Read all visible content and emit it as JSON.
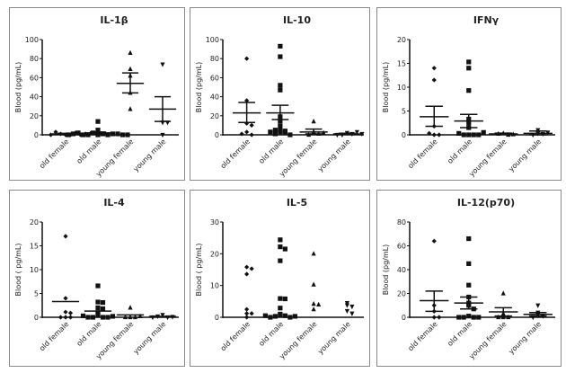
{
  "chart_data": [
    {
      "type": "scatter",
      "title": "IL-1β",
      "ylabel": "Blood (pg/mL)",
      "ylim": [
        0,
        100
      ],
      "yticks": [
        0,
        20,
        40,
        60,
        80,
        100
      ],
      "categories": [
        "old female",
        "old male",
        "young female",
        "young male"
      ],
      "markers": [
        "diamond",
        "square",
        "triangle-up",
        "triangle-down"
      ],
      "groups": [
        {
          "points": [
            0,
            0,
            1,
            2,
            3,
            0,
            0,
            1
          ],
          "mean": 1,
          "sem": [
            0.5,
            1.5
          ]
        },
        {
          "points": [
            0,
            1,
            2,
            5,
            14,
            0,
            0,
            1,
            0,
            1,
            2,
            0,
            1,
            0,
            0
          ],
          "mean": 2,
          "sem": [
            1,
            3
          ]
        },
        {
          "points": [
            86,
            69,
            62,
            44,
            27
          ],
          "mean": 54,
          "sem": [
            44,
            65
          ]
        },
        {
          "points": [
            74,
            13,
            13,
            0
          ],
          "mean": 27,
          "sem": [
            14,
            40
          ]
        }
      ]
    },
    {
      "type": "scatter",
      "title": "IL-10",
      "ylabel": "Blood (pg/mL)",
      "ylim": [
        0,
        100
      ],
      "yticks": [
        0,
        20,
        40,
        60,
        80,
        100
      ],
      "categories": [
        "old female",
        "old male",
        "young female",
        "young male"
      ],
      "markers": [
        "diamond",
        "square",
        "triangle-up",
        "triangle-down"
      ],
      "groups": [
        {
          "points": [
            80,
            36,
            12,
            10,
            3,
            0,
            1
          ],
          "mean": 23,
          "sem": [
            13,
            34
          ]
        },
        {
          "points": [
            93,
            82,
            52,
            47,
            19,
            14,
            9,
            5,
            4,
            3,
            2,
            1,
            0,
            3,
            5
          ],
          "mean": 23,
          "sem": [
            16,
            31
          ]
        },
        {
          "points": [
            14,
            3,
            1,
            0,
            2
          ],
          "mean": 3,
          "sem": [
            1,
            6
          ]
        },
        {
          "points": [
            2,
            1,
            0,
            3,
            0,
            1
          ],
          "mean": 1,
          "sem": [
            0.3,
            1.7
          ]
        }
      ]
    },
    {
      "type": "scatter",
      "title": "IFNγ",
      "ylabel": "Blood (pg/mL)",
      "ylim": [
        0,
        20
      ],
      "yticks": [
        0,
        5,
        10,
        15,
        20
      ],
      "categories": [
        "old female",
        "old male",
        "young female",
        "young male"
      ],
      "markers": [
        "diamond",
        "square",
        "triangle-up",
        "triangle-down"
      ],
      "groups": [
        {
          "points": [
            14,
            11.5,
            1.8,
            0,
            0,
            0.3
          ],
          "mean": 3.8,
          "sem": [
            1.8,
            6
          ]
        },
        {
          "points": [
            15.3,
            14,
            9.3,
            3.3,
            2.5,
            1.5,
            0,
            0,
            0,
            0,
            0.3,
            0.5
          ],
          "mean": 2.9,
          "sem": [
            1.5,
            4.3
          ]
        },
        {
          "points": [
            0.3,
            0,
            0.2,
            0.1
          ],
          "mean": 0.2,
          "sem": [
            0.05,
            0.35
          ]
        },
        {
          "points": [
            0.3,
            1,
            0.2,
            0,
            0.5
          ],
          "mean": 0.3,
          "sem": [
            0,
            0.8
          ]
        }
      ]
    },
    {
      "type": "scatter",
      "title": "IL-4",
      "ylabel": "Blood ( pg/mL)",
      "ylim": [
        0,
        20
      ],
      "yticks": [
        0,
        5,
        10,
        15,
        20
      ],
      "categories": [
        "old female",
        "old male",
        "young female",
        "young male"
      ],
      "markers": [
        "diamond",
        "square",
        "triangle-up",
        "triangle-down"
      ],
      "groups": [
        {
          "points": [
            17,
            4,
            1.1,
            0.9,
            0,
            0,
            0
          ],
          "mean": 3.3
        },
        {
          "points": [
            6.6,
            3.2,
            3.1,
            2,
            1.8,
            1,
            0.5,
            0,
            0,
            0,
            0,
            0.2,
            0.3
          ],
          "mean": 1.3
        },
        {
          "points": [
            2,
            0,
            0,
            0,
            0.2
          ],
          "mean": 0.5
        },
        {
          "points": [
            0.5,
            0,
            0.2,
            0.1,
            0
          ],
          "mean": 0.2
        }
      ]
    },
    {
      "type": "scatter",
      "title": "IL-5",
      "ylabel": "Blood ( pg/mL)",
      "ylim": [
        0,
        30
      ],
      "yticks": [
        0,
        10,
        20,
        30
      ],
      "categories": [
        "old female",
        "old male",
        "young female",
        "young male"
      ],
      "markers": [
        "diamond",
        "square",
        "triangle-up",
        "triangle-down"
      ],
      "groups": [
        {
          "points": [
            15.8,
            15.3,
            13.6,
            2.5,
            1.2,
            1.2,
            0
          ]
        },
        {
          "points": [
            24.4,
            22.2,
            21.5,
            17.8,
            5.9,
            5.8,
            2.9,
            1,
            0.8,
            0.5,
            0.3,
            0,
            0,
            0.3,
            0.5
          ]
        },
        {
          "points": [
            20,
            10.3,
            4.2,
            4,
            2.5
          ]
        },
        {
          "points": [
            3.8,
            3.4,
            4.5,
            2,
            1.2
          ]
        }
      ]
    },
    {
      "type": "scatter",
      "title": "IL-12(p70)",
      "ylabel": "Blood (pg/mL)",
      "ylim": [
        0,
        80
      ],
      "yticks": [
        0,
        20,
        40,
        60,
        80
      ],
      "categories": [
        "old female",
        "old male",
        "young female",
        "young male"
      ],
      "markers": [
        "diamond",
        "square",
        "triangle-up",
        "triangle-down"
      ],
      "groups": [
        {
          "points": [
            64,
            10,
            5,
            0,
            0
          ],
          "mean": 14,
          "sem": [
            5,
            22
          ]
        },
        {
          "points": [
            66,
            45,
            27,
            17,
            12,
            10,
            7,
            1,
            0,
            0,
            0,
            0
          ],
          "mean": 12,
          "sem": [
            7,
            17
          ]
        },
        {
          "points": [
            20,
            3,
            0,
            0,
            0
          ],
          "mean": 4.5,
          "sem": [
            1,
            8
          ]
        },
        {
          "points": [
            10,
            4,
            2,
            1,
            0
          ],
          "mean": 2.5,
          "sem": [
            1,
            4
          ]
        }
      ]
    }
  ]
}
